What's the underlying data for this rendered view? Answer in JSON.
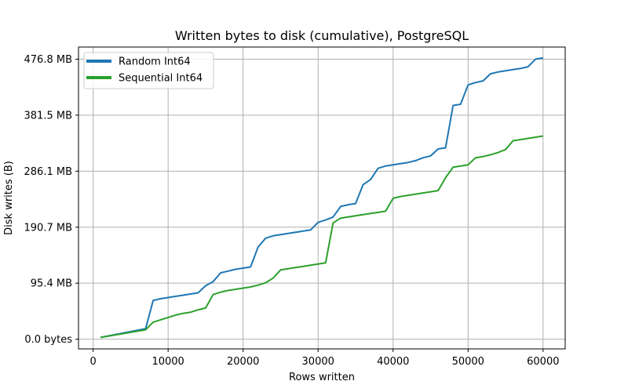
{
  "chart_data": {
    "type": "line",
    "title": "Written bytes to disk (cumulative), PostgreSQL",
    "xlabel": "Rows written",
    "ylabel": "Disk writes (B)",
    "xlim": [
      -1950,
      62950
    ],
    "ylim": [
      -16.5,
      497.5
    ],
    "x_ticks": [
      0,
      10000,
      20000,
      30000,
      40000,
      50000,
      60000
    ],
    "x_tick_labels": [
      "0",
      "10000",
      "20000",
      "30000",
      "40000",
      "50000",
      "60000"
    ],
    "y_ticks": [
      0,
      95.4,
      190.7,
      286.1,
      381.5,
      476.8
    ],
    "y_tick_labels": [
      "0.0 bytes",
      "95.4 MB",
      "190.7 MB",
      "286.1 MB",
      "381.5 MB",
      "476.8 MB"
    ],
    "y_unit": "MB",
    "grid": true,
    "legend_position": "top-left",
    "series": [
      {
        "name": "Random Int64",
        "color": "#1f77b4",
        "x": [
          1000,
          7000,
          8000,
          9000,
          10000,
          11000,
          12000,
          13000,
          14000,
          15000,
          16000,
          17000,
          18000,
          19000,
          20000,
          21000,
          22000,
          23000,
          24000,
          25000,
          26000,
          27000,
          28000,
          29000,
          30000,
          31000,
          32000,
          33000,
          34000,
          35000,
          36000,
          37000,
          38000,
          39000,
          40000,
          41000,
          42000,
          43000,
          44000,
          45000,
          46000,
          47000,
          48000,
          49000,
          50000,
          51000,
          52000,
          53000,
          54000,
          55000,
          56000,
          57000,
          58000,
          59000,
          60000
        ],
        "values": [
          3,
          18,
          66,
          69,
          71,
          73,
          75,
          77,
          79,
          91,
          98,
          113,
          116,
          119,
          121,
          123,
          157,
          172,
          176,
          178,
          180,
          182,
          184,
          186,
          199,
          203,
          208,
          226,
          229,
          231,
          263,
          272,
          291,
          295,
          297,
          299,
          301,
          304,
          309,
          312,
          324,
          326,
          398,
          400,
          433,
          437,
          440,
          452,
          455,
          457,
          459,
          461,
          464,
          477,
          479
        ]
      },
      {
        "name": "Sequential Int64",
        "color": "#2ca02c",
        "x": [
          1000,
          7000,
          8000,
          9000,
          10000,
          11000,
          12000,
          13000,
          14000,
          15000,
          16000,
          17000,
          18000,
          19000,
          20000,
          21000,
          22000,
          23000,
          24000,
          25000,
          26000,
          27000,
          28000,
          29000,
          30000,
          31000,
          32000,
          33000,
          34000,
          35000,
          36000,
          37000,
          38000,
          39000,
          40000,
          41000,
          42000,
          43000,
          44000,
          45000,
          46000,
          47000,
          48000,
          49000,
          50000,
          51000,
          52000,
          53000,
          54000,
          55000,
          56000,
          57000,
          58000,
          59000,
          60000
        ],
        "values": [
          3,
          16,
          29,
          33,
          37,
          41,
          44,
          46,
          50,
          53,
          76,
          80,
          83,
          85,
          87,
          89,
          92,
          96,
          104,
          118,
          120,
          122,
          124,
          126,
          128,
          130,
          198,
          206,
          208,
          210,
          212,
          214,
          216,
          218,
          240,
          243,
          245,
          247,
          249,
          251,
          253,
          275,
          293,
          295,
          297,
          309,
          311,
          314,
          318,
          323,
          338,
          340,
          342,
          344,
          346
        ]
      }
    ]
  }
}
